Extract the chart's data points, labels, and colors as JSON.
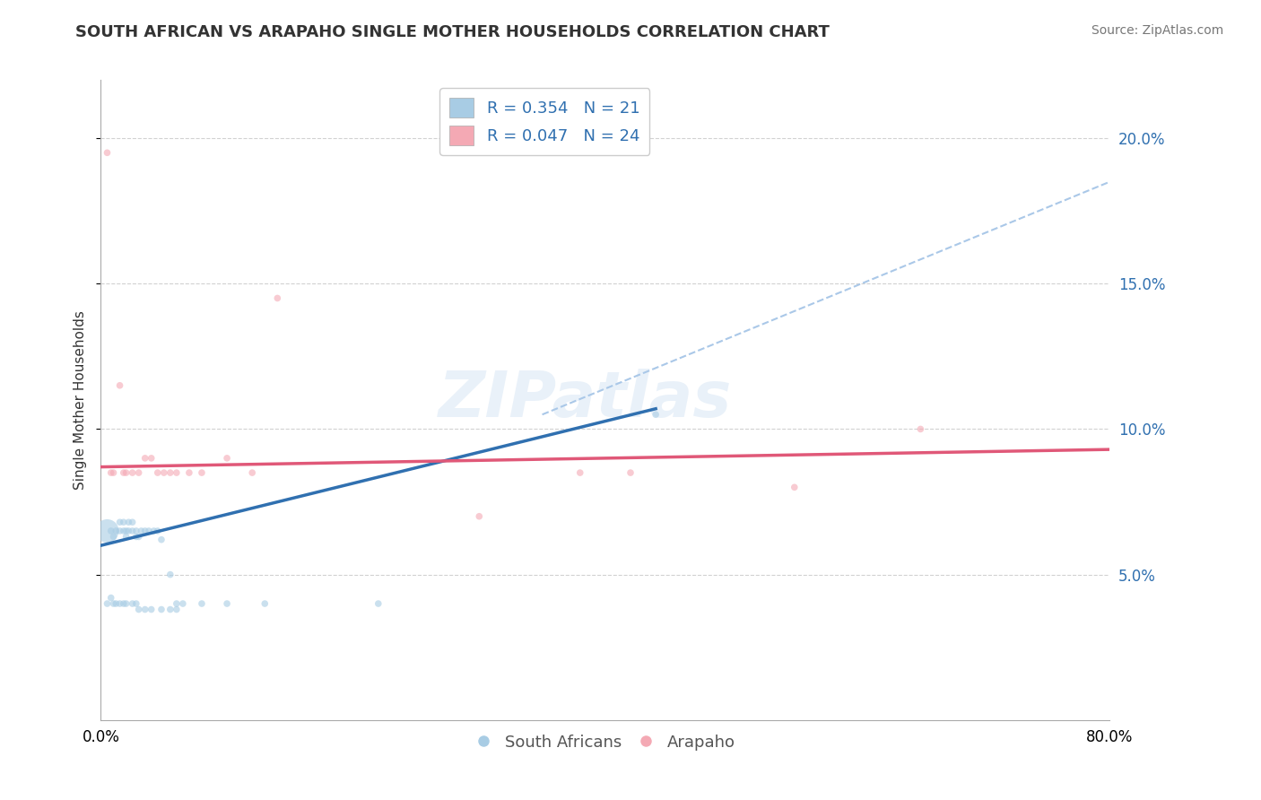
{
  "title": "SOUTH AFRICAN VS ARAPAHO SINGLE MOTHER HOUSEHOLDS CORRELATION CHART",
  "source": "Source: ZipAtlas.com",
  "ylabel": "Single Mother Households",
  "watermark": "ZIPatlas",
  "legend_blue_r": "R = 0.354",
  "legend_blue_n": "N = 21",
  "legend_pink_r": "R = 0.047",
  "legend_pink_n": "N = 24",
  "legend_blue_label": "South Africans",
  "legend_pink_label": "Arapaho",
  "xlim": [
    0.0,
    0.8
  ],
  "ylim": [
    0.0,
    0.22
  ],
  "yticks": [
    0.05,
    0.1,
    0.15,
    0.2
  ],
  "ytick_labels": [
    "5.0%",
    "10.0%",
    "15.0%",
    "20.0%"
  ],
  "xticks": [
    0.0,
    0.8
  ],
  "xtick_labels": [
    "0.0%",
    "80.0%"
  ],
  "blue_color": "#a8cce4",
  "pink_color": "#f4a9b4",
  "blue_line_color": "#3070b0",
  "pink_line_color": "#e05878",
  "dashed_line_color": "#aac8e8",
  "background_color": "#ffffff",
  "grid_color": "#cccccc",
  "sa_x": [
    0.005,
    0.008,
    0.01,
    0.012,
    0.015,
    0.015,
    0.018,
    0.018,
    0.02,
    0.02,
    0.022,
    0.022,
    0.025,
    0.025,
    0.028,
    0.028,
    0.03,
    0.032,
    0.035,
    0.038,
    0.042,
    0.045,
    0.048,
    0.055,
    0.06,
    0.065,
    0.08,
    0.1,
    0.13,
    0.22,
    0.44
  ],
  "sa_y": [
    0.065,
    0.065,
    0.063,
    0.065,
    0.065,
    0.068,
    0.065,
    0.068,
    0.063,
    0.065,
    0.065,
    0.068,
    0.068,
    0.065,
    0.063,
    0.065,
    0.063,
    0.065,
    0.065,
    0.065,
    0.065,
    0.065,
    0.062,
    0.05,
    0.04,
    0.04,
    0.04,
    0.04,
    0.04,
    0.04,
    0.105
  ],
  "sa_sizes": [
    350,
    30,
    30,
    30,
    30,
    30,
    30,
    30,
    30,
    30,
    30,
    30,
    30,
    30,
    30,
    30,
    30,
    30,
    30,
    30,
    30,
    30,
    30,
    30,
    30,
    30,
    30,
    30,
    30,
    30,
    30
  ],
  "sa_extra_x": [
    0.005,
    0.008,
    0.01,
    0.012,
    0.015,
    0.018,
    0.02,
    0.025,
    0.028,
    0.03,
    0.035,
    0.04,
    0.048,
    0.055,
    0.06
  ],
  "sa_extra_y": [
    0.04,
    0.042,
    0.04,
    0.04,
    0.04,
    0.04,
    0.04,
    0.04,
    0.04,
    0.038,
    0.038,
    0.038,
    0.038,
    0.038,
    0.038
  ],
  "sa_extra_sizes": [
    30,
    30,
    30,
    30,
    30,
    30,
    30,
    30,
    30,
    30,
    30,
    30,
    30,
    30,
    30
  ],
  "ar_x": [
    0.005,
    0.01,
    0.015,
    0.018,
    0.02,
    0.025,
    0.03,
    0.035,
    0.04,
    0.045,
    0.05,
    0.055,
    0.06,
    0.07,
    0.08,
    0.1,
    0.12,
    0.14,
    0.3,
    0.42,
    0.55,
    0.65,
    0.008,
    0.38
  ],
  "ar_y": [
    0.195,
    0.085,
    0.115,
    0.085,
    0.085,
    0.085,
    0.085,
    0.09,
    0.09,
    0.085,
    0.085,
    0.085,
    0.085,
    0.085,
    0.085,
    0.09,
    0.085,
    0.145,
    0.07,
    0.085,
    0.08,
    0.1,
    0.085,
    0.085
  ],
  "ar_sizes": [
    30,
    30,
    30,
    30,
    30,
    30,
    30,
    30,
    30,
    30,
    30,
    30,
    30,
    30,
    30,
    30,
    30,
    30,
    30,
    30,
    30,
    30,
    30,
    30
  ],
  "blue_line_x": [
    0.0,
    0.44
  ],
  "blue_line_y_start": 0.06,
  "blue_line_y_end": 0.107,
  "pink_line_x": [
    0.0,
    0.8
  ],
  "pink_line_y_start": 0.087,
  "pink_line_y_end": 0.093,
  "dash_line_x": [
    0.35,
    0.8
  ],
  "dash_line_y_start": 0.105,
  "dash_line_y_end": 0.185,
  "title_fontsize": 13,
  "source_fontsize": 10,
  "label_fontsize": 11,
  "tick_fontsize": 12,
  "legend_fontsize": 13,
  "watermark_fontsize": 52,
  "watermark_alpha": 0.12,
  "watermark_color": "#5090d0"
}
